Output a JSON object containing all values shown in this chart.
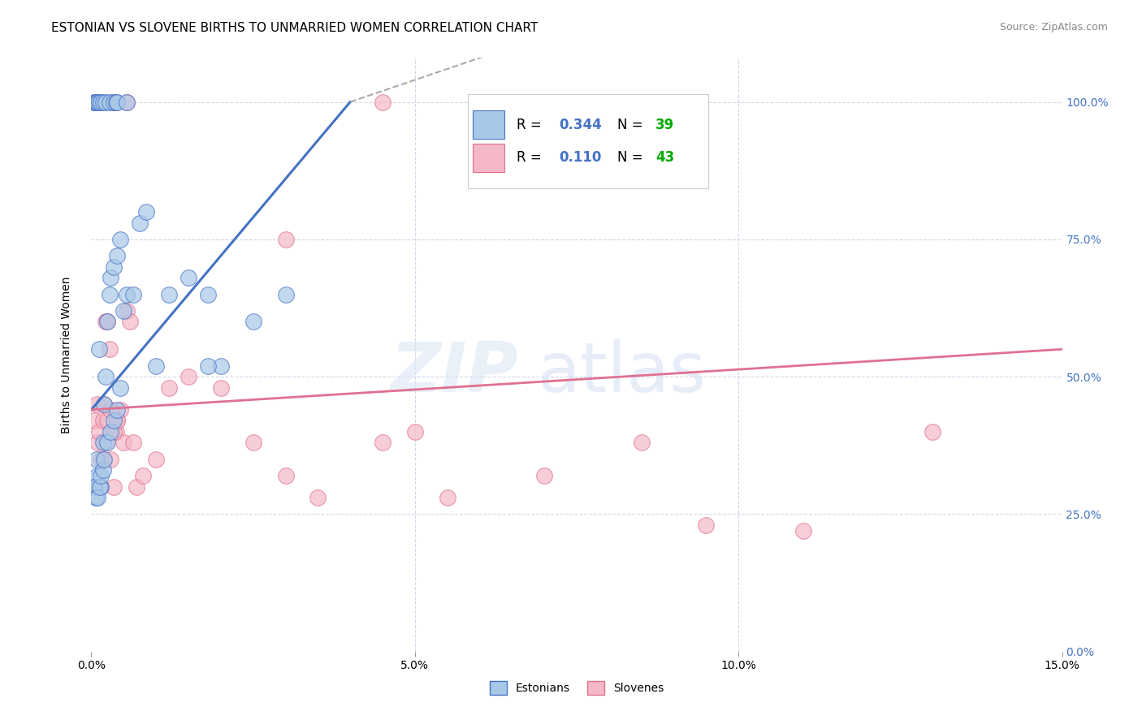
{
  "title": "ESTONIAN VS SLOVENE BIRTHS TO UNMARRIED WOMEN CORRELATION CHART",
  "source": "Source: ZipAtlas.com",
  "ylabel": "Births to Unmarried Women",
  "watermark_zip": "ZIP",
  "watermark_atlas": "atlas",
  "R_estonian": 0.344,
  "N_estonian": 39,
  "R_slovene": 0.11,
  "N_slovene": 43,
  "blue_fill": "#a8c8e8",
  "blue_edge": "#4472c4",
  "pink_fill": "#f4b8c8",
  "pink_edge": "#e07090",
  "trend_blue": "#4472c4",
  "trend_pink": "#e07090",
  "legend_R_color": "#4472c4",
  "legend_N_color": "#00aa00",
  "axis_color": "#4472c4",
  "grid_color": "#d0d8e8",
  "estonian_x": [
    0.05,
    0.08,
    0.1,
    0.12,
    0.15,
    0.18,
    0.2,
    0.22,
    0.25,
    0.28,
    0.3,
    0.35,
    0.4,
    0.45,
    0.5,
    0.55,
    0.65,
    0.75,
    0.85,
    1.0,
    1.2,
    1.5,
    1.8,
    2.0,
    2.5,
    3.0,
    0.05,
    0.07,
    0.1,
    0.13,
    0.15,
    0.18,
    0.2,
    0.25,
    0.3,
    0.35,
    0.4,
    0.45,
    1.8
  ],
  "estonian_y": [
    30,
    35,
    32,
    55,
    30,
    38,
    45,
    50,
    60,
    65,
    68,
    70,
    72,
    75,
    62,
    65,
    65,
    78,
    80,
    52,
    65,
    68,
    65,
    52,
    60,
    65,
    30,
    28,
    28,
    30,
    32,
    33,
    35,
    38,
    40,
    42,
    44,
    48,
    52
  ],
  "slovene_x": [
    0.05,
    0.08,
    0.1,
    0.12,
    0.15,
    0.18,
    0.2,
    0.22,
    0.25,
    0.28,
    0.3,
    0.35,
    0.38,
    0.4,
    0.45,
    0.5,
    0.55,
    0.6,
    0.65,
    0.7,
    0.8,
    1.0,
    1.2,
    1.5,
    2.0,
    2.5,
    3.0,
    3.5,
    0.18,
    0.22,
    0.25,
    0.3,
    0.35,
    0.4,
    4.5,
    5.0,
    7.0,
    8.5,
    9.5,
    11.0,
    13.0,
    5.5,
    3.0
  ],
  "slovene_y": [
    42,
    45,
    38,
    40,
    35,
    42,
    45,
    60,
    60,
    55,
    35,
    30,
    40,
    42,
    44,
    38,
    62,
    60,
    38,
    30,
    32,
    35,
    48,
    50,
    48,
    38,
    32,
    28,
    35,
    38,
    42,
    44,
    40,
    42,
    38,
    40,
    32,
    38,
    23,
    22,
    40,
    28,
    75
  ],
  "trend_est_x0": 0.0,
  "trend_est_y0": 44.0,
  "trend_est_x1": 4.0,
  "trend_est_y1": 100.0,
  "trend_est_dash_x1": 6.5,
  "trend_est_dash_y1": 110.0,
  "trend_slo_x0": 0.0,
  "trend_slo_y0": 44.0,
  "trend_slo_x1": 15.0,
  "trend_slo_y1": 55.0,
  "xlim": [
    0,
    15
  ],
  "ylim": [
    0,
    108
  ],
  "xticks": [
    0,
    5,
    10,
    15
  ],
  "xticklabels": [
    "0.0%",
    "5.0%",
    "10.0%",
    "15.0%"
  ],
  "yticks": [
    0,
    25,
    50,
    75,
    100
  ],
  "yticklabels": [
    "0.0%",
    "25.0%",
    "50.0%",
    "75.0%",
    "100.0%"
  ]
}
